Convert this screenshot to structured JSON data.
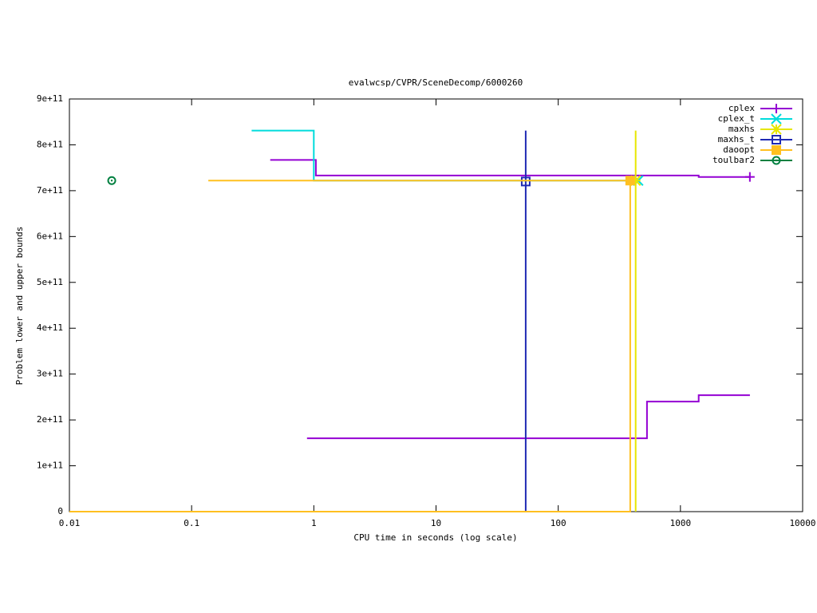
{
  "chart_data": {
    "type": "line",
    "title": "evalwcsp/CVPR/SceneDecomp/6000260",
    "x_label": "CPU time in seconds (log scale)",
    "y_label": "Problem lower and upper bounds",
    "xlog": true,
    "xlim": [
      0.01,
      10000
    ],
    "xticks": [
      0.01,
      0.1,
      1,
      10,
      100,
      1000,
      10000
    ],
    "ylim": [
      0,
      900000000000
    ],
    "yticks": [
      0,
      {
        "value": 100000000000,
        "label": "1e+11"
      },
      {
        "value": 200000000000,
        "label": "2e+11"
      },
      {
        "value": 300000000000,
        "label": "3e+11"
      },
      {
        "value": 400000000000,
        "label": "4e+11"
      },
      {
        "value": 500000000000,
        "label": "5e+11"
      },
      {
        "value": 600000000000,
        "label": "6e+11"
      },
      {
        "value": 700000000000,
        "label": "7e+11"
      },
      {
        "value": 800000000000,
        "label": "8e+11"
      },
      {
        "value": 900000000000,
        "label": "9e+11"
      }
    ],
    "legend": "top-right",
    "series": [
      {
        "name": "cplex",
        "color": "#9400d3",
        "marker": "plus",
        "x": [
          0.88,
          532,
          532,
          1410,
          1410,
          3700,
          null,
          0.44,
          1.04,
          1.04,
          1410,
          1410,
          3700
        ],
        "values": [
          160000000000,
          160000000000,
          240000000000,
          240000000000,
          254000000000,
          254000000000,
          null,
          767000000000,
          767000000000,
          733000000000,
          733000000000,
          730000000000,
          730000000000
        ]
      },
      {
        "name": "cplex_t",
        "color": "#00dcdc",
        "marker": "cross",
        "x": [
          0.31,
          1.0,
          1.0,
          451
        ],
        "values": [
          831000000000,
          831000000000,
          722000000000,
          722000000000
        ]
      },
      {
        "name": "maxhs",
        "color": "#e6e600",
        "marker": "star",
        "x": [
          430,
          430,
          null,
          430
        ],
        "values": [
          0,
          831000000000,
          null,
          722000000000
        ]
      },
      {
        "name": "maxhs_t",
        "color": "#1f2ab4",
        "marker": "square",
        "x": [
          54.2,
          54.2,
          null,
          54.2
        ],
        "values": [
          0,
          831000000000,
          null,
          720000000000
        ]
      },
      {
        "name": "daoopt",
        "color": "#ffc020",
        "marker": "filled-square",
        "x": [
          0.01,
          388,
          388,
          null,
          0.137,
          388
        ],
        "values": [
          0,
          0,
          722000000000,
          null,
          722000000000,
          722000000000
        ]
      },
      {
        "name": "toulbar2",
        "color": "#008040",
        "marker": "circle",
        "x": [
          0.0222
        ],
        "values": [
          722000000000
        ]
      }
    ]
  }
}
